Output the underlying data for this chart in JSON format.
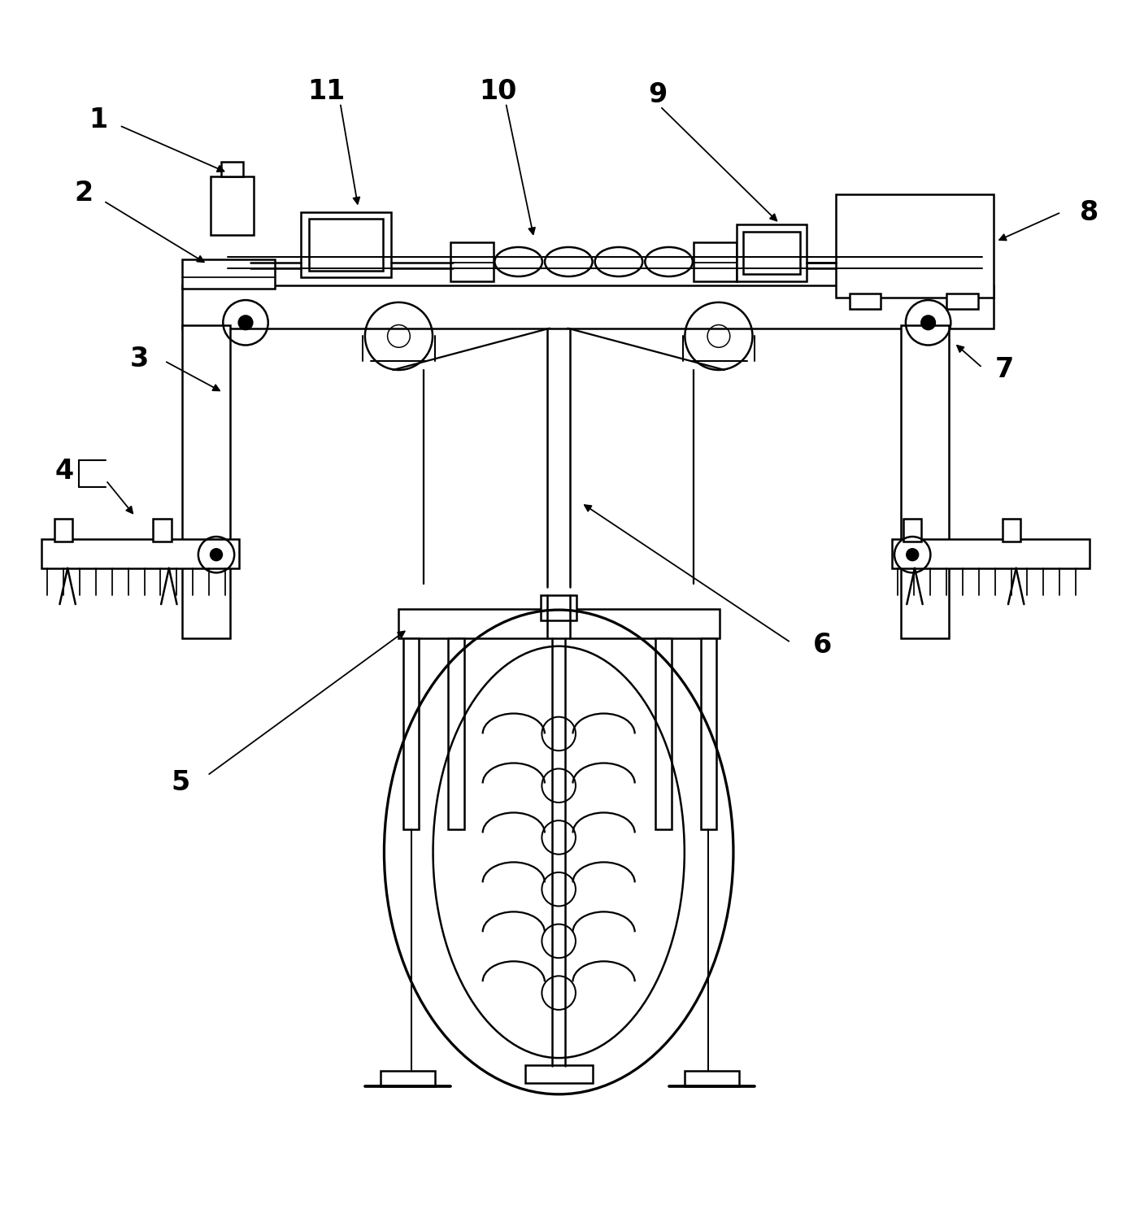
{
  "background_color": "#ffffff",
  "line_color": "#000000",
  "line_width": 1.8,
  "fig_width": 13.91,
  "fig_height": 15.14
}
